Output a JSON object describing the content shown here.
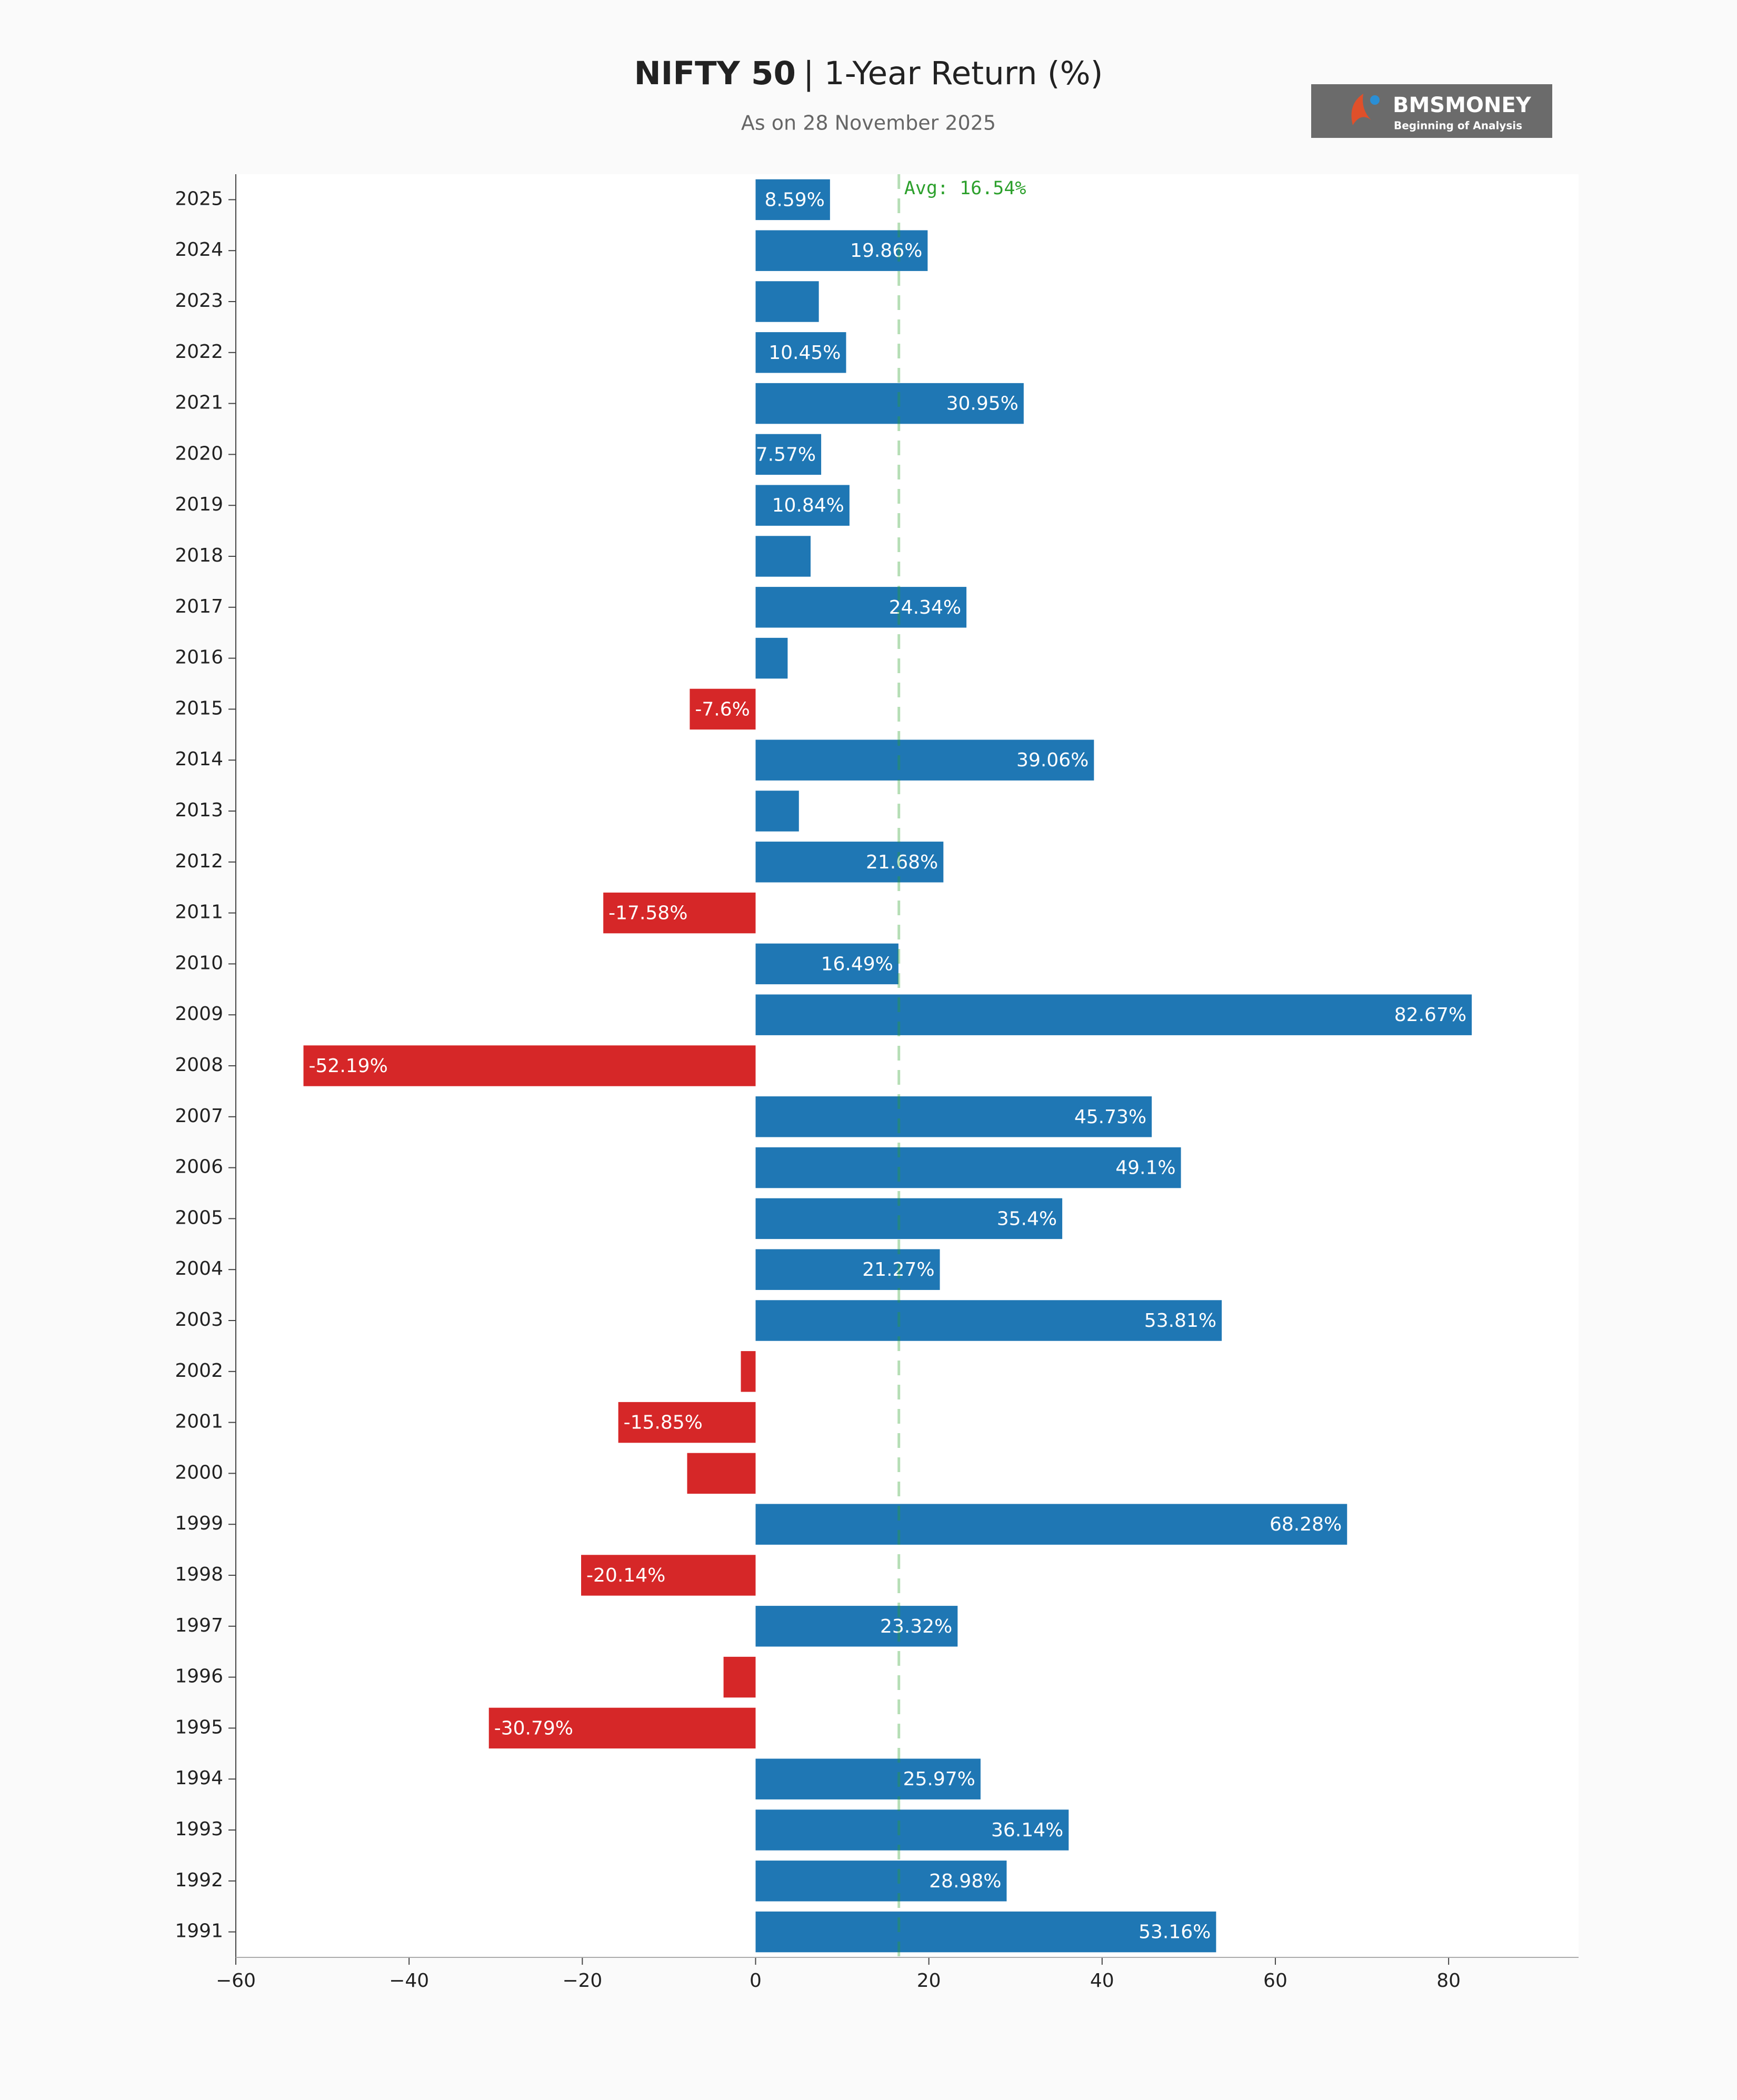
{
  "chart_data": {
    "type": "barh",
    "title": [
      "NIFTY 50",
      "| 1-Year Return (%)"
    ],
    "subtitle": "As on 28 November 2025",
    "logo": {
      "name": "BMSMONEY",
      "tagline": "Beginning of Analysis"
    },
    "categories": [
      "2025",
      "2024",
      "2023",
      "2022",
      "2021",
      "2020",
      "2019",
      "2018",
      "2017",
      "2016",
      "2015",
      "2014",
      "2013",
      "2012",
      "2011",
      "2010",
      "2009",
      "2008",
      "2007",
      "2006",
      "2005",
      "2004",
      "2003",
      "2002",
      "2001",
      "2000",
      "1999",
      "1998",
      "1997",
      "1996",
      "1995",
      "1994",
      "1993",
      "1992",
      "1991"
    ],
    "values": [
      8.59,
      19.86,
      7.3,
      10.45,
      30.95,
      7.57,
      10.84,
      6.35,
      24.34,
      3.7,
      -7.6,
      39.06,
      5.0,
      21.68,
      -17.58,
      16.49,
      82.67,
      -52.19,
      45.73,
      49.1,
      35.4,
      21.27,
      53.81,
      -1.7,
      -15.85,
      -7.9,
      68.28,
      -20.14,
      23.32,
      -3.7,
      -30.79,
      25.97,
      36.14,
      28.98,
      53.16
    ],
    "value_labels": [
      "8.59%",
      "19.86%",
      null,
      "10.45%",
      "30.95%",
      "7.57%",
      "10.84%",
      null,
      "24.34%",
      null,
      "-7.6%",
      "39.06%",
      null,
      "21.68%",
      "-17.58%",
      "16.49%",
      "82.67%",
      "-52.19%",
      "45.73%",
      "49.1%",
      "35.4%",
      "21.27%",
      "53.81%",
      null,
      "-15.85%",
      null,
      "68.28%",
      "-20.14%",
      "23.32%",
      null,
      "-30.79%",
      "25.97%",
      "36.14%",
      "28.98%",
      "53.16%"
    ],
    "positive_color": "#1f77b4",
    "negative_color": "#d62728",
    "xlim": [
      -60,
      95
    ],
    "xticks": [
      {
        "value": -60,
        "label": "−60"
      },
      {
        "value": -40,
        "label": "−40"
      },
      {
        "value": -20,
        "label": "−20"
      },
      0,
      20,
      40,
      60,
      80
    ],
    "average": {
      "value": 16.54,
      "label": "Avg: 16.54%",
      "color": "#2ca02c"
    },
    "grid": false
  }
}
